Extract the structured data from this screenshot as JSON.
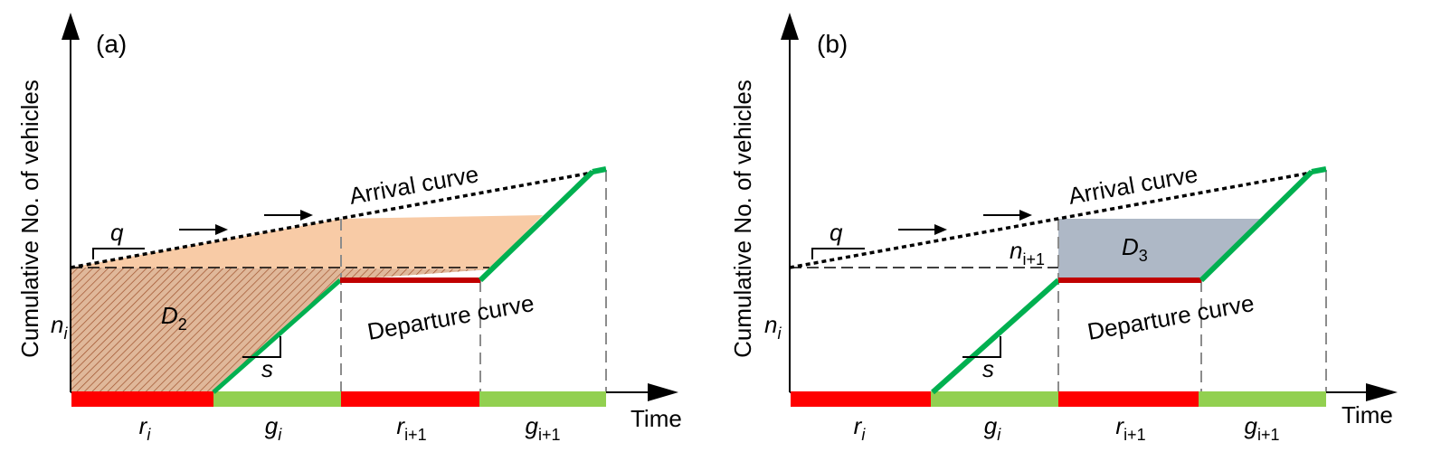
{
  "colors": {
    "red": "#ff0000",
    "dark_red": "#c00000",
    "green": "#00b050",
    "light_green": "#92d050",
    "orange_fill": "#f8cba6",
    "hatch_fill": "#e0b89a",
    "hatch_line": "#a0522d",
    "gray_fill": "#aeb8c6",
    "black": "#000000",
    "gray_dash": "#8c8c8c"
  },
  "panels": [
    {
      "label": "(a)",
      "y_axis_title": "Cumulative No. of vehicles",
      "x_axis_title": "Time",
      "arrival_label": "Arrival curve",
      "departure_label": "Departure curve",
      "q_label": "q",
      "s_label": "s",
      "n_i_label": {
        "base": "n",
        "sub": "i"
      },
      "delay_label": {
        "base": "D",
        "sub": "2"
      },
      "phases": [
        {
          "base": "r",
          "sub": "i"
        },
        {
          "base": "g",
          "sub": "i"
        },
        {
          "base": "r",
          "sub": "i+1"
        },
        {
          "base": "g",
          "sub": "i+1"
        }
      ]
    },
    {
      "label": "(b)",
      "y_axis_title": "Cumulative No. of vehicles",
      "x_axis_title": "Time",
      "arrival_label": "Arrival curve",
      "departure_label": "Departure curve",
      "q_label": "q",
      "s_label": "s",
      "n_i_label": {
        "base": "n",
        "sub": "i"
      },
      "n_i1_label": {
        "base": "n",
        "sub": "i+1"
      },
      "delay_label": {
        "base": "D",
        "sub": "3"
      },
      "phases": [
        {
          "base": "r",
          "sub": "i"
        },
        {
          "base": "g",
          "sub": "i"
        },
        {
          "base": "r",
          "sub": "i+1"
        },
        {
          "base": "g",
          "sub": "i+1"
        }
      ]
    }
  ]
}
